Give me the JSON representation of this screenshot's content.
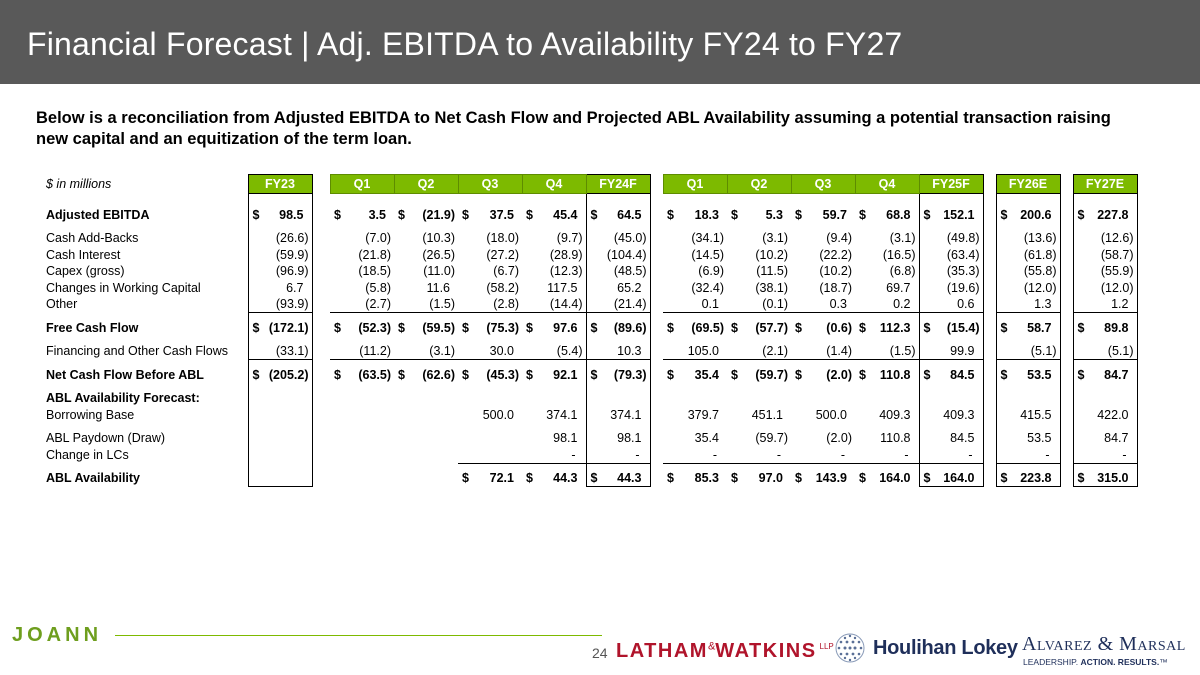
{
  "title": "Financial Forecast | Adj. EBITDA to Availability FY24 to FY27",
  "subtitle": "Below is a reconciliation from Adjusted EBITDA to Net Cash Flow and Projected ABL Availability assuming a potential transaction raising new capital and an equitization of the term loan.",
  "table": {
    "units": "$ in millions",
    "columns": [
      "FY23",
      "Q1",
      "Q2",
      "Q3",
      "Q4",
      "FY24F",
      "Q1",
      "Q2",
      "Q3",
      "Q4",
      "FY25F",
      "FY26E",
      "FY27E"
    ],
    "rows": {
      "adjusted_ebitda": {
        "label": "Adjusted EBITDA",
        "values": [
          "98.5",
          "3.5",
          "(21.9)",
          "37.5",
          "45.4",
          "64.5",
          "18.3",
          "5.3",
          "59.7",
          "68.8",
          "152.1",
          "200.6",
          "227.8"
        ]
      },
      "cash_addbacks": {
        "label": "Cash Add-Backs",
        "values": [
          "(26.6)",
          "(7.0)",
          "(10.3)",
          "(18.0)",
          "(9.7)",
          "(45.0)",
          "(34.1)",
          "(3.1)",
          "(9.4)",
          "(3.1)",
          "(49.8)",
          "(13.6)",
          "(12.6)"
        ]
      },
      "cash_interest": {
        "label": "Cash Interest",
        "values": [
          "(59.9)",
          "(21.8)",
          "(26.5)",
          "(27.2)",
          "(28.9)",
          "(104.4)",
          "(14.5)",
          "(10.2)",
          "(22.2)",
          "(16.5)",
          "(63.4)",
          "(61.8)",
          "(58.7)"
        ]
      },
      "capex": {
        "label": "Capex (gross)",
        "values": [
          "(96.9)",
          "(18.5)",
          "(11.0)",
          "(6.7)",
          "(12.3)",
          "(48.5)",
          "(6.9)",
          "(11.5)",
          "(10.2)",
          "(6.8)",
          "(35.3)",
          "(55.8)",
          "(55.9)"
        ]
      },
      "working_capital": {
        "label": "Changes in Working Capital",
        "values": [
          "6.7",
          "(5.8)",
          "11.6",
          "(58.2)",
          "117.5",
          "65.2",
          "(32.4)",
          "(38.1)",
          "(18.7)",
          "69.7",
          "(19.6)",
          "(12.0)",
          "(12.0)"
        ]
      },
      "other": {
        "label": "Other",
        "values": [
          "(93.9)",
          "(2.7)",
          "(1.5)",
          "(2.8)",
          "(14.4)",
          "(21.4)",
          "0.1",
          "(0.1)",
          "0.3",
          "0.2",
          "0.6",
          "1.3",
          "1.2"
        ]
      },
      "free_cash_flow": {
        "label": "Free Cash Flow",
        "values": [
          "(172.1)",
          "(52.3)",
          "(59.5)",
          "(75.3)",
          "97.6",
          "(89.6)",
          "(69.5)",
          "(57.7)",
          "(0.6)",
          "112.3",
          "(15.4)",
          "58.7",
          "89.8"
        ]
      },
      "financing": {
        "label": "Financing and Other Cash Flows",
        "values": [
          "(33.1)",
          "(11.2)",
          "(3.1)",
          "30.0",
          "(5.4)",
          "10.3",
          "105.0",
          "(2.1)",
          "(1.4)",
          "(1.5)",
          "99.9",
          "(5.1)",
          "(5.1)"
        ]
      },
      "net_cash_flow": {
        "label": "Net Cash Flow Before ABL",
        "values": [
          "(205.2)",
          "(63.5)",
          "(62.6)",
          "(45.3)",
          "92.1",
          "(79.3)",
          "35.4",
          "(59.7)",
          "(2.0)",
          "110.8",
          "84.5",
          "53.5",
          "84.7"
        ]
      },
      "abl_forecast_header": {
        "label": "ABL Availability Forecast:"
      },
      "borrowing_base": {
        "label": "Borrowing Base",
        "values": [
          "",
          "",
          "",
          "500.0",
          "374.1",
          "374.1",
          "379.7",
          "451.1",
          "500.0",
          "409.3",
          "409.3",
          "415.5",
          "422.0"
        ]
      },
      "abl_paydown": {
        "label": "ABL Paydown (Draw)",
        "values": [
          "",
          "",
          "",
          "",
          "98.1",
          "98.1",
          "35.4",
          "(59.7)",
          "(2.0)",
          "110.8",
          "84.5",
          "53.5",
          "84.7"
        ]
      },
      "change_lcs": {
        "label": "Change in LCs",
        "values": [
          "",
          "",
          "",
          "",
          "-",
          "-",
          "-",
          "-",
          "-",
          "-",
          "-",
          "-",
          "-"
        ]
      },
      "abl_availability": {
        "label": "ABL Availability",
        "values": [
          "",
          "",
          "",
          "72.1",
          "44.3",
          "44.3",
          "85.3",
          "97.0",
          "143.9",
          "164.0",
          "164.0",
          "223.8",
          "315.0"
        ]
      }
    },
    "currency_symbol": "$"
  },
  "footer": {
    "joann": "JOANN",
    "page_number": "24",
    "latham_main": "LATHAM",
    "latham_amp": "&",
    "latham_second": "WATKINS",
    "latham_llp": "LLP",
    "houlihan": "Houlihan Lokey",
    "am_name": "Alvarez & Marsal",
    "am_tagline_1": "LEADERSHIP.",
    "am_tagline_2": "ACTION. RESULTS.",
    "am_tagline_tm": "™"
  },
  "colors": {
    "title_bar": "#595959",
    "header_green": "#7dba00",
    "footer_line": "#7dba00",
    "joann": "#6e9e1e",
    "latham_red": "#b0142b",
    "houlihan_navy": "#1f2f5a"
  }
}
